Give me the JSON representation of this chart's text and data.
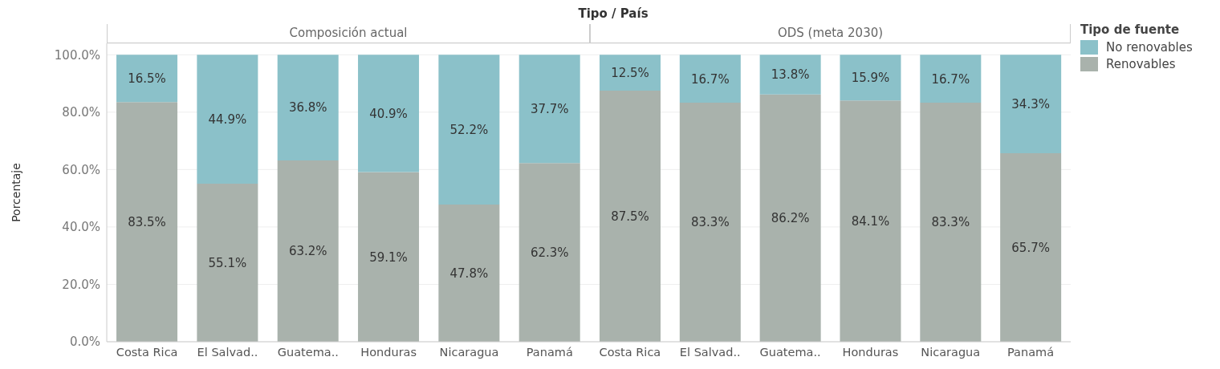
{
  "chart_data": [
    {
      "type": "bar",
      "stacked": true,
      "title": "Composición actual",
      "annotations": [
        "Tipo / País"
      ],
      "ylabel": "Porcentaje",
      "categories": [
        "Costa Rica",
        "El Salvad..",
        "Guatema..",
        "Honduras",
        "Nicaragua",
        "Panamá"
      ],
      "series": [
        {
          "color": "#a9b2ac",
          "values": [
            83.5,
            55.1,
            63.2,
            59.1,
            47.8,
            62.3
          ],
          "value_labels": [
            "83.5%",
            "55.1%",
            "63.2%",
            "59.1%",
            "47.8%",
            "62.3%"
          ]
        },
        {
          "color": "#8bc1c9",
          "values": [
            16.5,
            44.9,
            36.8,
            40.9,
            52.2,
            37.7
          ],
          "value_labels": [
            "16.5%",
            "44.9%",
            "36.8%",
            "40.9%",
            "52.2%",
            "37.7%"
          ]
        }
      ],
      "ylim": [
        0,
        104
      ],
      "yticks": [
        {
          "value": 0,
          "label": "0.0%"
        },
        {
          "value": 20,
          "label": "20.0%"
        },
        {
          "value": 40,
          "label": "40.0%"
        },
        {
          "value": 60,
          "label": "60.0%"
        },
        {
          "value": 80,
          "label": "80.0%"
        },
        {
          "value": 100,
          "label": "100.0%"
        }
      ],
      "grid": "y"
    },
    {
      "type": "bar",
      "stacked": true,
      "title": "ODS (meta 2030)",
      "legend": "top right",
      "legend_title": "Tipo de fuente",
      "tick_labels": "x",
      "yticks": [
        {
          "value": 0,
          "label": null
        },
        {
          "value": 20,
          "label": null
        },
        {
          "value": 40,
          "label": null
        },
        {
          "value": 60,
          "label": null
        },
        {
          "value": 80,
          "label": null
        },
        {
          "value": 100,
          "label": null
        }
      ],
      "categories": [
        "Costa Rica",
        "El Salvad..",
        "Guatema..",
        "Honduras",
        "Nicaragua",
        "Panamá"
      ],
      "series": [
        {
          "name": "Renovables",
          "color": "#a9b2ac",
          "values": [
            87.5,
            83.3,
            86.2,
            84.1,
            83.3,
            65.7
          ],
          "value_labels": [
            "87.5%",
            "83.3%",
            "86.2%",
            "84.1%",
            "83.3%",
            "65.7%"
          ]
        },
        {
          "name": "No renovables",
          "color": "#8bc1c9",
          "values": [
            12.5,
            16.7,
            13.8,
            15.9,
            16.7,
            34.3
          ],
          "value_labels": [
            "12.5%",
            "16.7%",
            "13.8%",
            "15.9%",
            "16.7%",
            "34.3%"
          ]
        }
      ],
      "ylim": [
        0,
        104
      ],
      "grid": "y"
    }
  ]
}
